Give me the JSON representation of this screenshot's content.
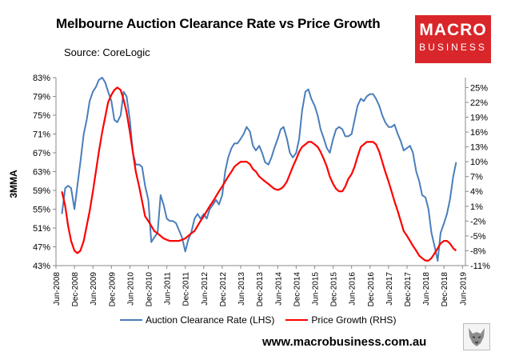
{
  "title": "Melbourne Auction Clearance Rate vs Price Growth",
  "source": "Source: CoreLogic",
  "logo": {
    "line1": "MACRO",
    "line2": "BUSINESS"
  },
  "y_axis_label": "3MMA",
  "legend": {
    "series1": "Auction Clearance Rate (LHS)",
    "series2": "Price Growth (RHS)"
  },
  "url": "www.macrobusiness.com.au",
  "colors": {
    "clearance": "#4a7ebb",
    "growth": "#ff0000",
    "brand": "#d9262a"
  },
  "chart_data": {
    "type": "line",
    "x_ticks": [
      "Jun-2008",
      "Dec-2008",
      "Jun-2009",
      "Dec-2009",
      "Jun-2010",
      "Dec-2010",
      "Jun-2011",
      "Dec-2011",
      "Jun-2012",
      "Dec-2012",
      "Jun-2013",
      "Dec-2013",
      "Jun-2014",
      "Dec-2014",
      "Jun-2015",
      "Dec-2015",
      "Jun-2016",
      "Dec-2016",
      "Jun-2017",
      "Dec-2017",
      "Jun-2018",
      "Dec-2018",
      "Jun-2019"
    ],
    "x_range": [
      2008.42,
      2019.5
    ],
    "y_left": {
      "ticks": [
        "43%",
        "47%",
        "51%",
        "55%",
        "59%",
        "63%",
        "67%",
        "71%",
        "75%",
        "79%",
        "83%"
      ],
      "min": 43,
      "max": 83
    },
    "y_right": {
      "ticks": [
        "-11%",
        "-8%",
        "-5%",
        "-2%",
        "1%",
        "4%",
        "7%",
        "10%",
        "13%",
        "16%",
        "19%",
        "22%",
        "25%"
      ],
      "min": -11,
      "max": 27
    },
    "series": [
      {
        "name": "Auction Clearance Rate (LHS)",
        "axis": "left",
        "points": [
          [
            2008.58,
            54
          ],
          [
            2008.67,
            59.5
          ],
          [
            2008.75,
            60
          ],
          [
            2008.83,
            59.5
          ],
          [
            2008.92,
            55
          ],
          [
            2009.0,
            60
          ],
          [
            2009.08,
            65
          ],
          [
            2009.17,
            71
          ],
          [
            2009.25,
            74
          ],
          [
            2009.33,
            78
          ],
          [
            2009.42,
            80
          ],
          [
            2009.5,
            81
          ],
          [
            2009.58,
            82.5
          ],
          [
            2009.67,
            83
          ],
          [
            2009.75,
            82
          ],
          [
            2009.83,
            80
          ],
          [
            2009.92,
            78
          ],
          [
            2010.0,
            74
          ],
          [
            2010.08,
            73.5
          ],
          [
            2010.17,
            75
          ],
          [
            2010.25,
            80
          ],
          [
            2010.33,
            79
          ],
          [
            2010.42,
            74
          ],
          [
            2010.5,
            67
          ],
          [
            2010.58,
            64.5
          ],
          [
            2010.67,
            64.5
          ],
          [
            2010.75,
            64
          ],
          [
            2010.83,
            60
          ],
          [
            2010.92,
            57
          ],
          [
            2011.0,
            48
          ],
          [
            2011.08,
            49
          ],
          [
            2011.17,
            50
          ],
          [
            2011.25,
            58
          ],
          [
            2011.33,
            56
          ],
          [
            2011.42,
            53
          ],
          [
            2011.5,
            52.5
          ],
          [
            2011.58,
            52.5
          ],
          [
            2011.67,
            52
          ],
          [
            2011.75,
            50.5
          ],
          [
            2011.83,
            49
          ],
          [
            2011.92,
            46
          ],
          [
            2012.0,
            48.5
          ],
          [
            2012.08,
            50
          ],
          [
            2012.17,
            53
          ],
          [
            2012.25,
            54
          ],
          [
            2012.33,
            53
          ],
          [
            2012.42,
            54
          ],
          [
            2012.5,
            53
          ],
          [
            2012.58,
            55
          ],
          [
            2012.67,
            56
          ],
          [
            2012.75,
            57
          ],
          [
            2012.83,
            56
          ],
          [
            2012.92,
            58
          ],
          [
            2013.0,
            63
          ],
          [
            2013.08,
            66
          ],
          [
            2013.17,
            68
          ],
          [
            2013.25,
            69
          ],
          [
            2013.33,
            69
          ],
          [
            2013.42,
            70
          ],
          [
            2013.5,
            71
          ],
          [
            2013.58,
            72.5
          ],
          [
            2013.67,
            71.5
          ],
          [
            2013.75,
            68.5
          ],
          [
            2013.83,
            67.5
          ],
          [
            2013.92,
            68.5
          ],
          [
            2014.0,
            67
          ],
          [
            2014.08,
            65
          ],
          [
            2014.17,
            64.5
          ],
          [
            2014.25,
            66
          ],
          [
            2014.33,
            68
          ],
          [
            2014.42,
            70
          ],
          [
            2014.5,
            72
          ],
          [
            2014.58,
            72.5
          ],
          [
            2014.67,
            70
          ],
          [
            2014.75,
            67
          ],
          [
            2014.83,
            66
          ],
          [
            2014.92,
            67
          ],
          [
            2015.0,
            70
          ],
          [
            2015.08,
            76
          ],
          [
            2015.17,
            80
          ],
          [
            2015.25,
            80.5
          ],
          [
            2015.33,
            78.5
          ],
          [
            2015.42,
            77
          ],
          [
            2015.5,
            75
          ],
          [
            2015.58,
            72
          ],
          [
            2015.67,
            70
          ],
          [
            2015.75,
            68
          ],
          [
            2015.83,
            67
          ],
          [
            2015.92,
            70
          ],
          [
            2016.0,
            72
          ],
          [
            2016.08,
            72.5
          ],
          [
            2016.17,
            72
          ],
          [
            2016.25,
            70.5
          ],
          [
            2016.33,
            70.5
          ],
          [
            2016.42,
            71
          ],
          [
            2016.5,
            74
          ],
          [
            2016.58,
            77
          ],
          [
            2016.67,
            78.5
          ],
          [
            2016.75,
            78
          ],
          [
            2016.83,
            79
          ],
          [
            2016.92,
            79.5
          ],
          [
            2017.0,
            79.5
          ],
          [
            2017.08,
            78.5
          ],
          [
            2017.17,
            77
          ],
          [
            2017.25,
            75
          ],
          [
            2017.33,
            73.5
          ],
          [
            2017.42,
            72.5
          ],
          [
            2017.5,
            72.5
          ],
          [
            2017.58,
            73
          ],
          [
            2017.67,
            71
          ],
          [
            2017.75,
            69.5
          ],
          [
            2017.83,
            67.5
          ],
          [
            2017.92,
            68
          ],
          [
            2018.0,
            68.5
          ],
          [
            2018.08,
            67
          ],
          [
            2018.17,
            63
          ],
          [
            2018.25,
            61
          ],
          [
            2018.33,
            58
          ],
          [
            2018.42,
            57.5
          ],
          [
            2018.5,
            55
          ],
          [
            2018.58,
            50
          ],
          [
            2018.67,
            47
          ],
          [
            2018.75,
            44
          ],
          [
            2018.83,
            50
          ],
          [
            2018.92,
            52
          ],
          [
            2019.0,
            54
          ],
          [
            2019.08,
            57
          ],
          [
            2019.17,
            62
          ],
          [
            2019.25,
            65
          ]
        ]
      },
      {
        "name": "Price Growth (RHS)",
        "axis": "right",
        "points": [
          [
            2008.58,
            4
          ],
          [
            2008.67,
            1
          ],
          [
            2008.75,
            -3
          ],
          [
            2008.83,
            -6
          ],
          [
            2008.92,
            -8
          ],
          [
            2009.0,
            -8.5
          ],
          [
            2009.08,
            -8
          ],
          [
            2009.17,
            -6
          ],
          [
            2009.25,
            -3
          ],
          [
            2009.33,
            0
          ],
          [
            2009.42,
            4
          ],
          [
            2009.5,
            8
          ],
          [
            2009.58,
            12
          ],
          [
            2009.67,
            16
          ],
          [
            2009.75,
            19
          ],
          [
            2009.83,
            22
          ],
          [
            2009.92,
            23.5
          ],
          [
            2010.0,
            24.5
          ],
          [
            2010.08,
            25
          ],
          [
            2010.17,
            24.5
          ],
          [
            2010.25,
            22.5
          ],
          [
            2010.33,
            20
          ],
          [
            2010.42,
            16
          ],
          [
            2010.5,
            12
          ],
          [
            2010.58,
            8
          ],
          [
            2010.67,
            5
          ],
          [
            2010.75,
            2
          ],
          [
            2010.83,
            -1
          ],
          [
            2010.92,
            -2
          ],
          [
            2011.0,
            -3
          ],
          [
            2011.08,
            -4
          ],
          [
            2011.17,
            -4.5
          ],
          [
            2011.25,
            -5
          ],
          [
            2011.33,
            -5.5
          ],
          [
            2011.42,
            -5.8
          ],
          [
            2011.5,
            -6
          ],
          [
            2011.58,
            -6
          ],
          [
            2011.67,
            -6
          ],
          [
            2011.75,
            -6
          ],
          [
            2011.83,
            -5.8
          ],
          [
            2011.92,
            -5.5
          ],
          [
            2012.0,
            -5
          ],
          [
            2012.08,
            -4.5
          ],
          [
            2012.17,
            -4
          ],
          [
            2012.25,
            -3
          ],
          [
            2012.33,
            -2
          ],
          [
            2012.42,
            -1
          ],
          [
            2012.5,
            0
          ],
          [
            2012.58,
            1
          ],
          [
            2012.67,
            2
          ],
          [
            2012.75,
            3
          ],
          [
            2012.83,
            4
          ],
          [
            2012.92,
            5
          ],
          [
            2013.0,
            6
          ],
          [
            2013.08,
            7
          ],
          [
            2013.17,
            8
          ],
          [
            2013.25,
            9
          ],
          [
            2013.33,
            9.5
          ],
          [
            2013.42,
            10
          ],
          [
            2013.5,
            10
          ],
          [
            2013.58,
            10
          ],
          [
            2013.67,
            9.5
          ],
          [
            2013.75,
            8.5
          ],
          [
            2013.83,
            8
          ],
          [
            2013.92,
            7
          ],
          [
            2014.0,
            6.5
          ],
          [
            2014.08,
            6
          ],
          [
            2014.17,
            5.5
          ],
          [
            2014.25,
            5
          ],
          [
            2014.33,
            4.5
          ],
          [
            2014.42,
            4.3
          ],
          [
            2014.5,
            4.5
          ],
          [
            2014.58,
            5
          ],
          [
            2014.67,
            6
          ],
          [
            2014.75,
            7.5
          ],
          [
            2014.83,
            9
          ],
          [
            2014.92,
            10.5
          ],
          [
            2015.0,
            12
          ],
          [
            2015.08,
            13
          ],
          [
            2015.17,
            13.5
          ],
          [
            2015.25,
            14
          ],
          [
            2015.33,
            14
          ],
          [
            2015.42,
            13.5
          ],
          [
            2015.5,
            13
          ],
          [
            2015.58,
            12
          ],
          [
            2015.67,
            10.5
          ],
          [
            2015.75,
            9
          ],
          [
            2015.83,
            7
          ],
          [
            2015.92,
            5.5
          ],
          [
            2016.0,
            4.5
          ],
          [
            2016.08,
            4
          ],
          [
            2016.17,
            4
          ],
          [
            2016.25,
            5
          ],
          [
            2016.33,
            6.5
          ],
          [
            2016.42,
            7.5
          ],
          [
            2016.5,
            9
          ],
          [
            2016.58,
            11
          ],
          [
            2016.67,
            13
          ],
          [
            2016.75,
            13.5
          ],
          [
            2016.83,
            14
          ],
          [
            2016.92,
            14
          ],
          [
            2017.0,
            14
          ],
          [
            2017.08,
            13.5
          ],
          [
            2017.17,
            12
          ],
          [
            2017.25,
            10
          ],
          [
            2017.33,
            8
          ],
          [
            2017.42,
            6
          ],
          [
            2017.5,
            4
          ],
          [
            2017.58,
            2
          ],
          [
            2017.67,
            0
          ],
          [
            2017.75,
            -2
          ],
          [
            2017.83,
            -4
          ],
          [
            2017.92,
            -5
          ],
          [
            2018.0,
            -6
          ],
          [
            2018.08,
            -7
          ],
          [
            2018.17,
            -8
          ],
          [
            2018.25,
            -9
          ],
          [
            2018.33,
            -9.5
          ],
          [
            2018.42,
            -10
          ],
          [
            2018.5,
            -10
          ],
          [
            2018.58,
            -9.5
          ],
          [
            2018.67,
            -8.5
          ],
          [
            2018.75,
            -7.5
          ],
          [
            2018.83,
            -6.5
          ],
          [
            2018.92,
            -6
          ],
          [
            2019.0,
            -6
          ],
          [
            2019.08,
            -6.5
          ],
          [
            2019.17,
            -7.5
          ],
          [
            2019.25,
            -8
          ]
        ]
      }
    ]
  }
}
